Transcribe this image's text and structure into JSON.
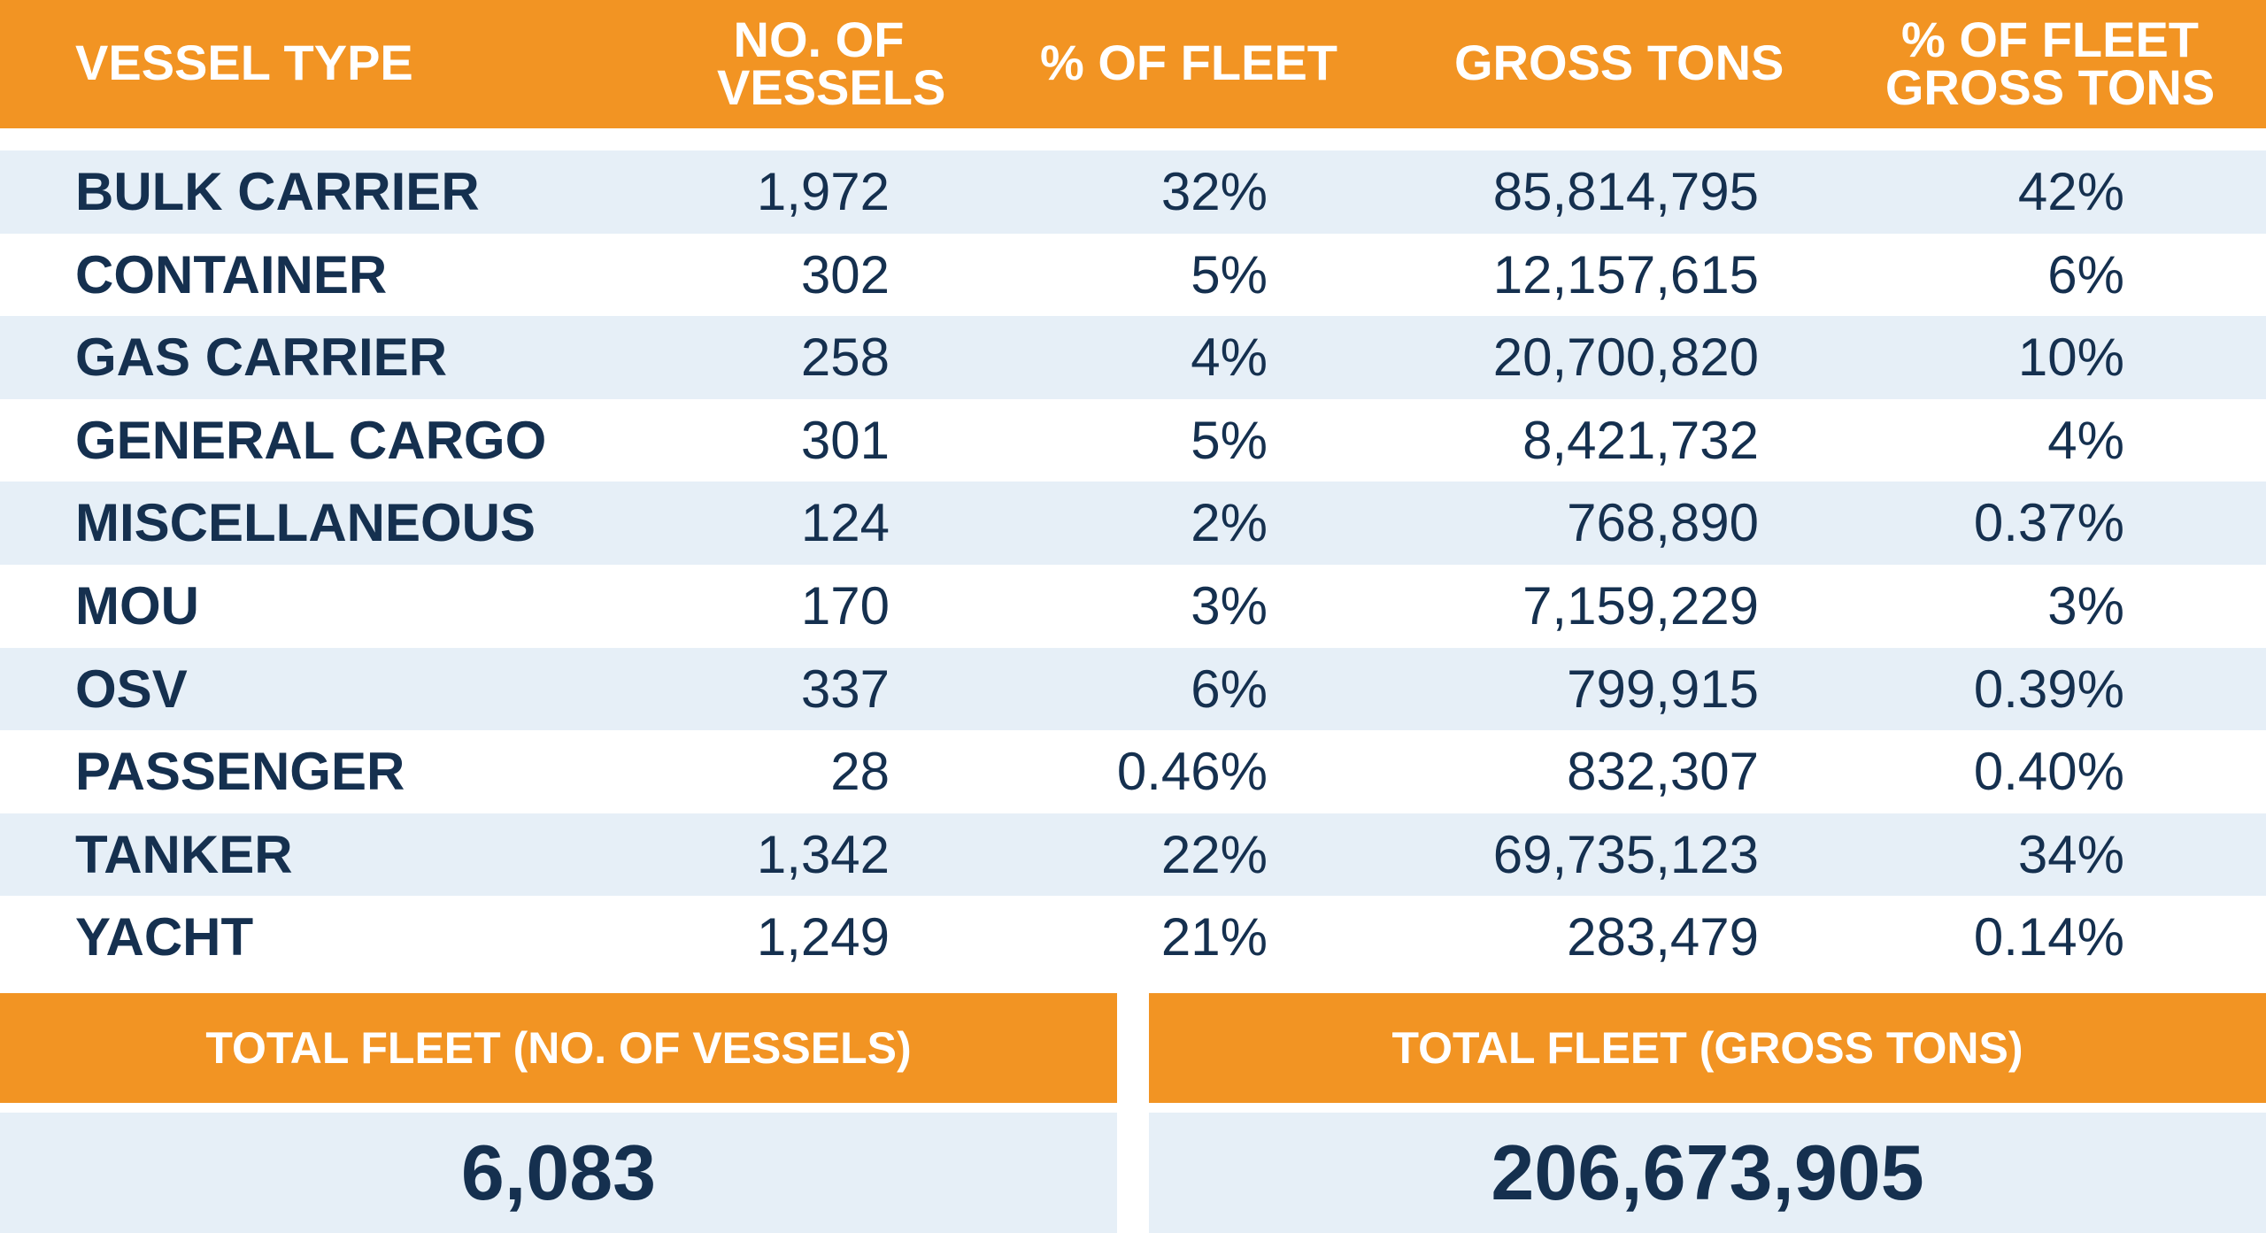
{
  "header": {
    "vessel_type": "VESSEL TYPE",
    "no_of_vessels_line1": "NO. OF",
    "no_of_vessels_line2": "VESSELS",
    "pct_of_fleet": "% OF FLEET",
    "gross_tons": "GROSS TONS",
    "pct_gross_line1": "% OF FLEET",
    "pct_gross_line2": "GROSS TONS"
  },
  "rows": [
    {
      "type": "BULK CARRIER",
      "vessels": "1,972",
      "pct_fleet": "32%",
      "gross_tons": "85,814,795",
      "pct_gross": "42%"
    },
    {
      "type": "CONTAINER",
      "vessels": "302",
      "pct_fleet": "5%",
      "gross_tons": "12,157,615",
      "pct_gross": "6%"
    },
    {
      "type": "GAS CARRIER",
      "vessels": "258",
      "pct_fleet": "4%",
      "gross_tons": "20,700,820",
      "pct_gross": "10%"
    },
    {
      "type": "GENERAL CARGO",
      "vessels": "301",
      "pct_fleet": "5%",
      "gross_tons": "8,421,732",
      "pct_gross": "4%"
    },
    {
      "type": "MISCELLANEOUS",
      "vessels": "124",
      "pct_fleet": "2%",
      "gross_tons": "768,890",
      "pct_gross": "0.37%"
    },
    {
      "type": "MOU",
      "vessels": "170",
      "pct_fleet": "3%",
      "gross_tons": "7,159,229",
      "pct_gross": "3%"
    },
    {
      "type": "OSV",
      "vessels": "337",
      "pct_fleet": "6%",
      "gross_tons": "799,915",
      "pct_gross": "0.39%"
    },
    {
      "type": "PASSENGER",
      "vessels": "28",
      "pct_fleet": "0.46%",
      "gross_tons": "832,307",
      "pct_gross": "0.40%"
    },
    {
      "type": "TANKER",
      "vessels": "1,342",
      "pct_fleet": "22%",
      "gross_tons": "69,735,123",
      "pct_gross": "34%"
    },
    {
      "type": "YACHT",
      "vessels": "1,249",
      "pct_fleet": "21%",
      "gross_tons": "283,479",
      "pct_gross": "0.14%"
    }
  ],
  "totals": {
    "vessels_label": "TOTAL FLEET (NO. OF VESSELS)",
    "vessels_value": "6,083",
    "gross_label": "TOTAL FLEET (GROSS TONS)",
    "gross_value": "206,673,905"
  },
  "colors": {
    "header_orange": "#f29423",
    "row_alt_blue": "#e6eff7",
    "text_navy": "#15304f"
  }
}
